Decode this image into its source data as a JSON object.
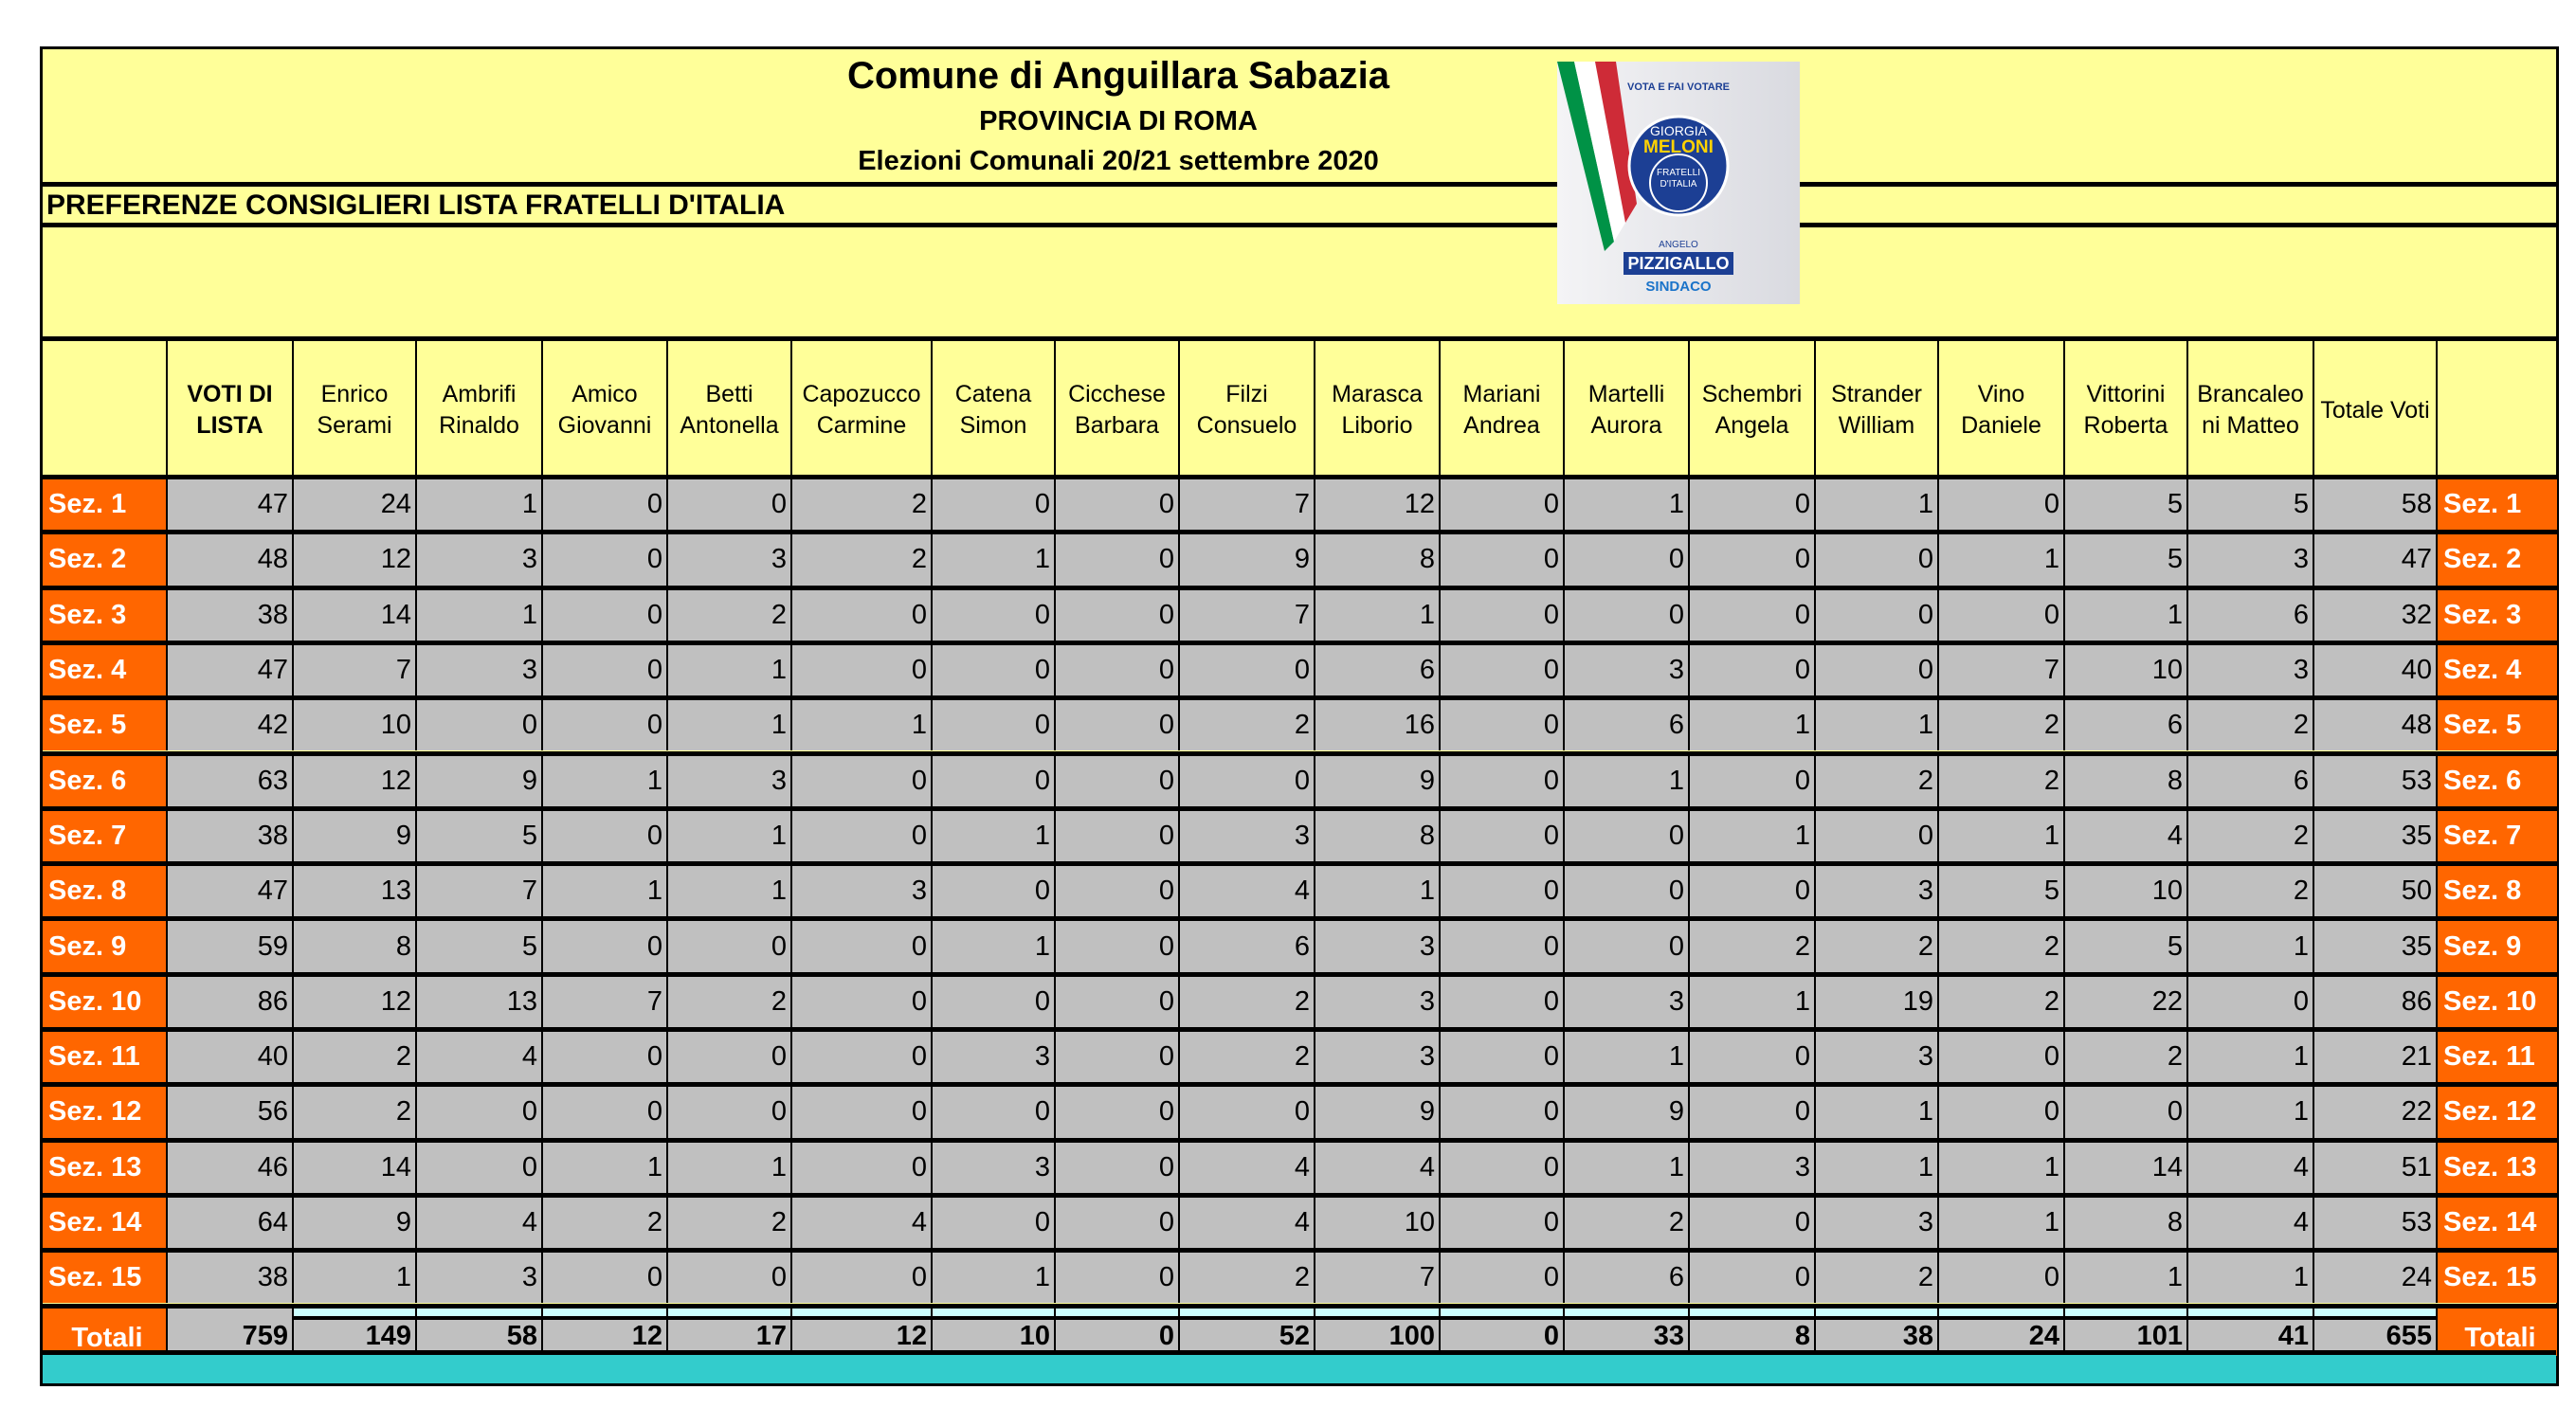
{
  "header": {
    "title": "Comune di Anguillara Sabazia",
    "province": "PROVINCIA DI ROMA",
    "election": "Elezioni Comunali 20/21 settembre 2020",
    "subtitle": "PREFERENZE CONSIGLIERI LISTA FRATELLI D'ITALIA"
  },
  "logo": {
    "top_text": "VOTA E FAI VOTARE",
    "leader1": "GIORGIA",
    "leader2": "MELONI",
    "party1": "FRATELLI",
    "party2": "D'ITALIA",
    "candidate_first": "ANGELO",
    "candidate_last": "PIZZIGALLO",
    "role": "SINDACO"
  },
  "colors": {
    "label_bg": "#ff6600",
    "cell_bg": "#c0c0c0",
    "sheet_bg": "#ffff99",
    "band": "#33cccc",
    "strip": "#ccffff"
  },
  "columns": [
    [
      "VOTI DI",
      "LISTA"
    ],
    [
      "Enrico",
      "Serami"
    ],
    [
      "Ambrifi",
      "Rinaldo"
    ],
    [
      "Amico",
      "Giovanni"
    ],
    [
      "Betti",
      "Antonella"
    ],
    [
      "Capozucco",
      "Carmine"
    ],
    [
      "Catena",
      "Simon"
    ],
    [
      "Cicchese",
      "Barbara"
    ],
    [
      "Filzi",
      "Consuelo"
    ],
    [
      "Marasca",
      "Liborio"
    ],
    [
      "Mariani",
      "Andrea"
    ],
    [
      "Martelli",
      "Aurora"
    ],
    [
      "Schembri",
      "Angela"
    ],
    [
      "Strander",
      "William"
    ],
    [
      "Vino",
      "Daniele"
    ],
    [
      "Vittorini",
      "Roberta"
    ],
    [
      "Brancaleo",
      "ni Matteo"
    ],
    [
      "Totale Voti",
      ""
    ]
  ],
  "rows": [
    {
      "label": "Sez. 1",
      "values": [
        47,
        24,
        1,
        0,
        0,
        2,
        0,
        0,
        7,
        12,
        0,
        1,
        0,
        1,
        0,
        5,
        5,
        58
      ]
    },
    {
      "label": "Sez. 2",
      "values": [
        48,
        12,
        3,
        0,
        3,
        2,
        1,
        0,
        9,
        8,
        0,
        0,
        0,
        0,
        1,
        5,
        3,
        47
      ]
    },
    {
      "label": "Sez. 3",
      "values": [
        38,
        14,
        1,
        0,
        2,
        0,
        0,
        0,
        7,
        1,
        0,
        0,
        0,
        0,
        0,
        1,
        6,
        32
      ]
    },
    {
      "label": "Sez. 4",
      "values": [
        47,
        7,
        3,
        0,
        1,
        0,
        0,
        0,
        0,
        6,
        0,
        3,
        0,
        0,
        7,
        10,
        3,
        40
      ]
    },
    {
      "label": "Sez. 5",
      "values": [
        42,
        10,
        0,
        0,
        1,
        1,
        0,
        0,
        2,
        16,
        0,
        6,
        1,
        1,
        2,
        6,
        2,
        48
      ]
    },
    {
      "label": "Sez. 6",
      "values": [
        63,
        12,
        9,
        1,
        3,
        0,
        0,
        0,
        0,
        9,
        0,
        1,
        0,
        2,
        2,
        8,
        6,
        53
      ]
    },
    {
      "label": "Sez. 7",
      "values": [
        38,
        9,
        5,
        0,
        1,
        0,
        1,
        0,
        3,
        8,
        0,
        0,
        1,
        0,
        1,
        4,
        2,
        35
      ]
    },
    {
      "label": "Sez. 8",
      "values": [
        47,
        13,
        7,
        1,
        1,
        3,
        0,
        0,
        4,
        1,
        0,
        0,
        0,
        3,
        5,
        10,
        2,
        50
      ]
    },
    {
      "label": "Sez. 9",
      "values": [
        59,
        8,
        5,
        0,
        0,
        0,
        1,
        0,
        6,
        3,
        0,
        0,
        2,
        2,
        2,
        5,
        1,
        35
      ]
    },
    {
      "label": "Sez. 10",
      "values": [
        86,
        12,
        13,
        7,
        2,
        0,
        0,
        0,
        2,
        3,
        0,
        3,
        1,
        19,
        2,
        22,
        0,
        86
      ]
    },
    {
      "label": "Sez. 11",
      "values": [
        40,
        2,
        4,
        0,
        0,
        0,
        3,
        0,
        2,
        3,
        0,
        1,
        0,
        3,
        0,
        2,
        1,
        21
      ]
    },
    {
      "label": "Sez. 12",
      "values": [
        56,
        2,
        0,
        0,
        0,
        0,
        0,
        0,
        0,
        9,
        0,
        9,
        0,
        1,
        0,
        0,
        1,
        22
      ]
    },
    {
      "label": "Sez. 13",
      "values": [
        46,
        14,
        0,
        1,
        1,
        0,
        3,
        0,
        4,
        4,
        0,
        1,
        3,
        1,
        1,
        14,
        4,
        51
      ]
    },
    {
      "label": "Sez. 14",
      "values": [
        64,
        9,
        4,
        2,
        2,
        4,
        0,
        0,
        4,
        10,
        0,
        2,
        0,
        3,
        1,
        8,
        4,
        53
      ]
    },
    {
      "label": "Sez. 15",
      "values": [
        38,
        1,
        3,
        0,
        0,
        0,
        1,
        0,
        2,
        7,
        0,
        6,
        0,
        2,
        0,
        1,
        1,
        24
      ]
    }
  ],
  "totals": {
    "label": "Totali",
    "values": [
      759,
      149,
      58,
      12,
      17,
      12,
      10,
      0,
      52,
      100,
      0,
      33,
      8,
      38,
      24,
      101,
      41,
      655
    ]
  }
}
